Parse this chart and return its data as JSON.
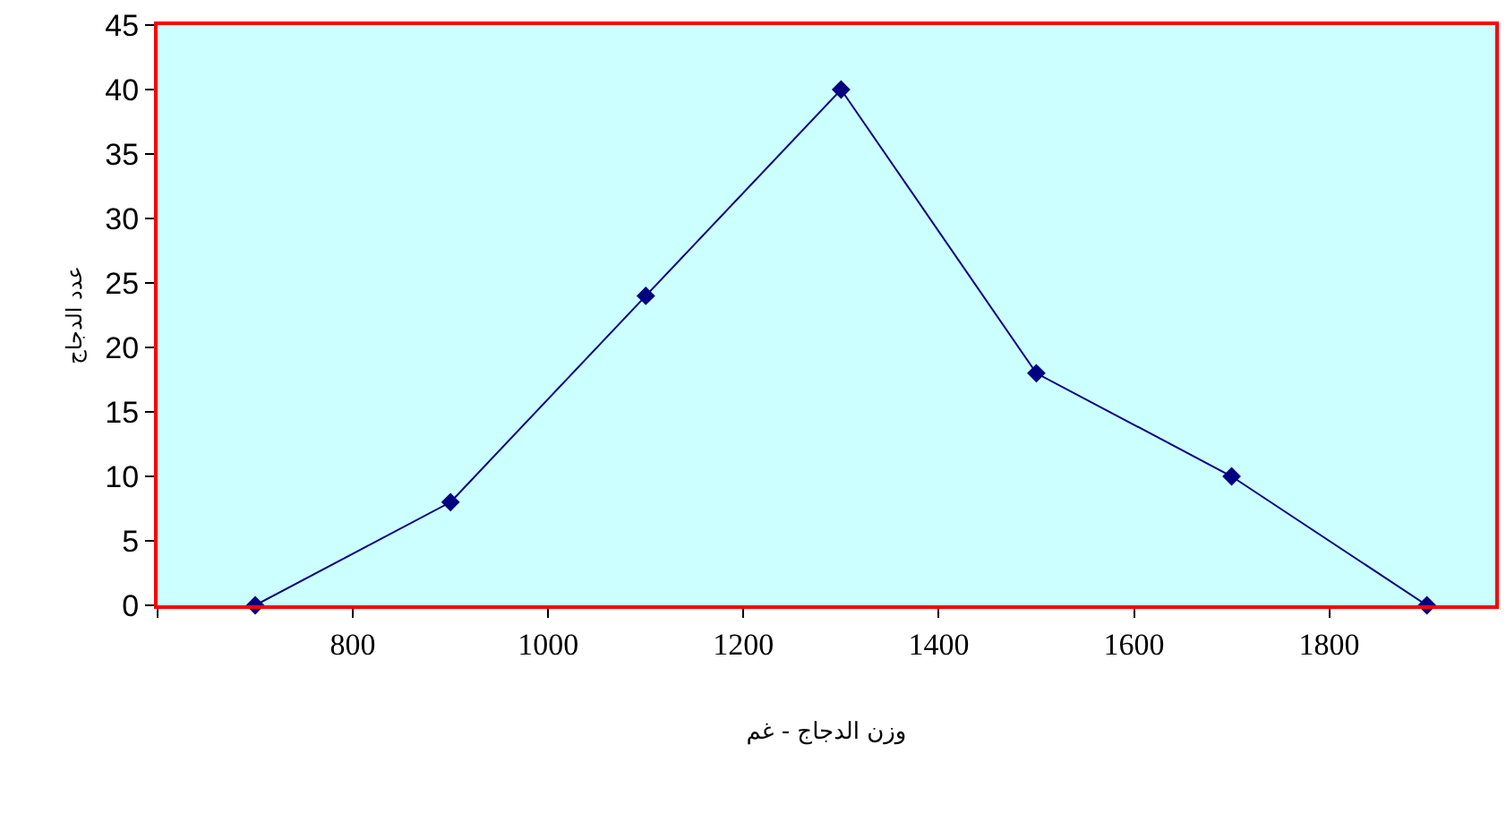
{
  "chart_data": {
    "type": "line",
    "xlabel": "وزن الدجاج - غم",
    "ylabel": "عدد الدجاج",
    "x": [
      700,
      900,
      1100,
      1300,
      1500,
      1700,
      1900
    ],
    "series": [
      {
        "color": "#000080",
        "values": [
          0,
          8,
          24,
          40,
          18,
          10,
          0
        ]
      }
    ],
    "xlim": [
      600,
      1970
    ],
    "xticks": [
      {
        "value": 600,
        "label": null
      },
      800,
      1000,
      1200,
      1400,
      1600,
      1800
    ],
    "ylim": [
      0,
      45
    ],
    "yticks": [
      0,
      5,
      10,
      15,
      20,
      25,
      30,
      35,
      40,
      45
    ],
    "marker": "diamond",
    "line_style": "solid",
    "grid": false,
    "legend": false
  }
}
